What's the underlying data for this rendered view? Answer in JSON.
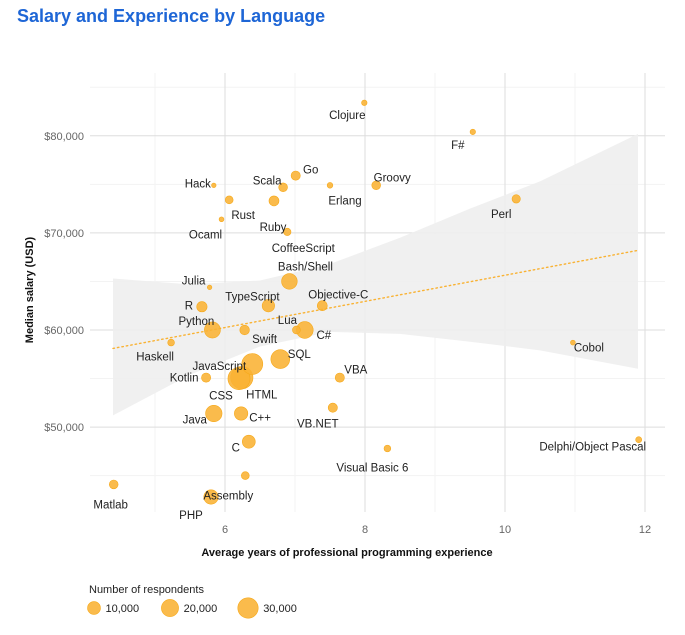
{
  "chart_data": {
    "type": "scatter",
    "title": "Salary and Experience by Language",
    "xlabel": "Average years of professional programming experience",
    "ylabel": "Median salary (USD)",
    "xlim": [
      4.2,
      12.3
    ],
    "ylim": [
      41800,
      87000
    ],
    "x_ticks": [
      6,
      8,
      10,
      12
    ],
    "y_ticks": [
      {
        "value": 50000,
        "label": "$50,000"
      },
      {
        "value": 60000,
        "label": "$60,000"
      },
      {
        "value": 70000,
        "label": "$70,000"
      },
      {
        "value": 80000,
        "label": "$80,000"
      }
    ],
    "grid": true,
    "color": "#f9b233",
    "trend_line": {
      "x": [
        4.4,
        11.9
      ],
      "y": [
        58100,
        68200
      ],
      "style": "dotted",
      "color": "#f9b233"
    },
    "confidence_band": {
      "x": [
        4.4,
        5.5,
        6.5,
        7.5,
        8.5,
        9.5,
        10.5,
        11.9
      ],
      "upper": [
        65300,
        64700,
        65100,
        66800,
        69500,
        72500,
        75300,
        80200
      ],
      "lower": [
        51200,
        55400,
        58300,
        59800,
        59600,
        58800,
        57900,
        56000
      ],
      "color": "#eeeeee"
    },
    "points": [
      {
        "label": "Clojure",
        "x": 7.99,
        "y": 83400,
        "size": 700
      },
      {
        "label": "F#",
        "x": 9.54,
        "y": 80400,
        "size": 700
      },
      {
        "label": "Go",
        "x": 7.01,
        "y": 75900,
        "size": 4000
      },
      {
        "label": "Hack",
        "x": 5.84,
        "y": 74900,
        "size": 300
      },
      {
        "label": "Scala",
        "x": 6.83,
        "y": 74700,
        "size": 3500
      },
      {
        "label": "Erlang",
        "x": 7.5,
        "y": 74900,
        "size": 800
      },
      {
        "label": "Groovy",
        "x": 8.16,
        "y": 74900,
        "size": 3500
      },
      {
        "label": "Rust",
        "x": 6.06,
        "y": 73400,
        "size": 2500
      },
      {
        "label": "Perl",
        "x": 10.16,
        "y": 73500,
        "size": 3000
      },
      {
        "label": "Ruby",
        "x": 6.7,
        "y": 73300,
        "size": 5000
      },
      {
        "label": "Ocaml",
        "x": 5.95,
        "y": 71400,
        "size": 400
      },
      {
        "label": "CoffeeScript",
        "x": 6.89,
        "y": 70100,
        "size": 2000
      },
      {
        "label": "Julia",
        "x": 5.78,
        "y": 64400,
        "size": 300
      },
      {
        "label": "Bash/Shell",
        "x": 6.92,
        "y": 65000,
        "size": 16000
      },
      {
        "label": "R",
        "x": 5.67,
        "y": 62400,
        "size": 5500
      },
      {
        "label": "TypeScript",
        "x": 6.62,
        "y": 62500,
        "size": 9000
      },
      {
        "label": "Objective-C",
        "x": 7.39,
        "y": 62500,
        "size": 5000
      },
      {
        "label": "Python",
        "x": 5.82,
        "y": 60000,
        "size": 17000
      },
      {
        "label": "Swift",
        "x": 6.28,
        "y": 60000,
        "size": 4500
      },
      {
        "label": "Lua",
        "x": 7.02,
        "y": 60000,
        "size": 2500
      },
      {
        "label": "C#",
        "x": 7.14,
        "y": 60000,
        "size": 19000
      },
      {
        "label": "Cobol",
        "x": 10.97,
        "y": 58700,
        "size": 400
      },
      {
        "label": "Haskell",
        "x": 5.23,
        "y": 58700,
        "size": 1500
      },
      {
        "label": "JavaScript",
        "x": 6.39,
        "y": 56500,
        "size": 32000
      },
      {
        "label": "SQL",
        "x": 6.79,
        "y": 57000,
        "size": 25000
      },
      {
        "label": "Kotlin",
        "x": 5.73,
        "y": 55100,
        "size": 4000
      },
      {
        "label": "VBA",
        "x": 7.64,
        "y": 55100,
        "size": 4000
      },
      {
        "label": "HTML",
        "x": 6.24,
        "y": 55100,
        "size": 37000
      },
      {
        "label": "CSS",
        "x": 6.2,
        "y": 55000,
        "size": 36000
      },
      {
        "label": "VB.NET",
        "x": 7.54,
        "y": 52000,
        "size": 4000
      },
      {
        "label": "Java",
        "x": 5.84,
        "y": 51400,
        "size": 18000
      },
      {
        "label": "C++",
        "x": 6.23,
        "y": 51400,
        "size": 11000
      },
      {
        "label": "C",
        "x": 6.34,
        "y": 48500,
        "size": 10000
      },
      {
        "label": "Delphi/Object Pascal",
        "x": 11.91,
        "y": 48700,
        "size": 1000
      },
      {
        "label": "Visual Basic 6",
        "x": 8.32,
        "y": 47800,
        "size": 1500
      },
      {
        "label": "Assembly",
        "x": 6.29,
        "y": 45000,
        "size": 2500
      },
      {
        "label": "Matlab",
        "x": 4.41,
        "y": 44100,
        "size": 3500
      },
      {
        "label": "PHP",
        "x": 5.8,
        "y": 42800,
        "size": 13000
      }
    ],
    "legend": {
      "title": "Number of respondents",
      "position": "bottom-left",
      "items": [
        {
          "label": "10,000",
          "size": 10000
        },
        {
          "label": "20,000",
          "size": 20000
        },
        {
          "label": "30,000",
          "size": 30000
        }
      ]
    }
  }
}
